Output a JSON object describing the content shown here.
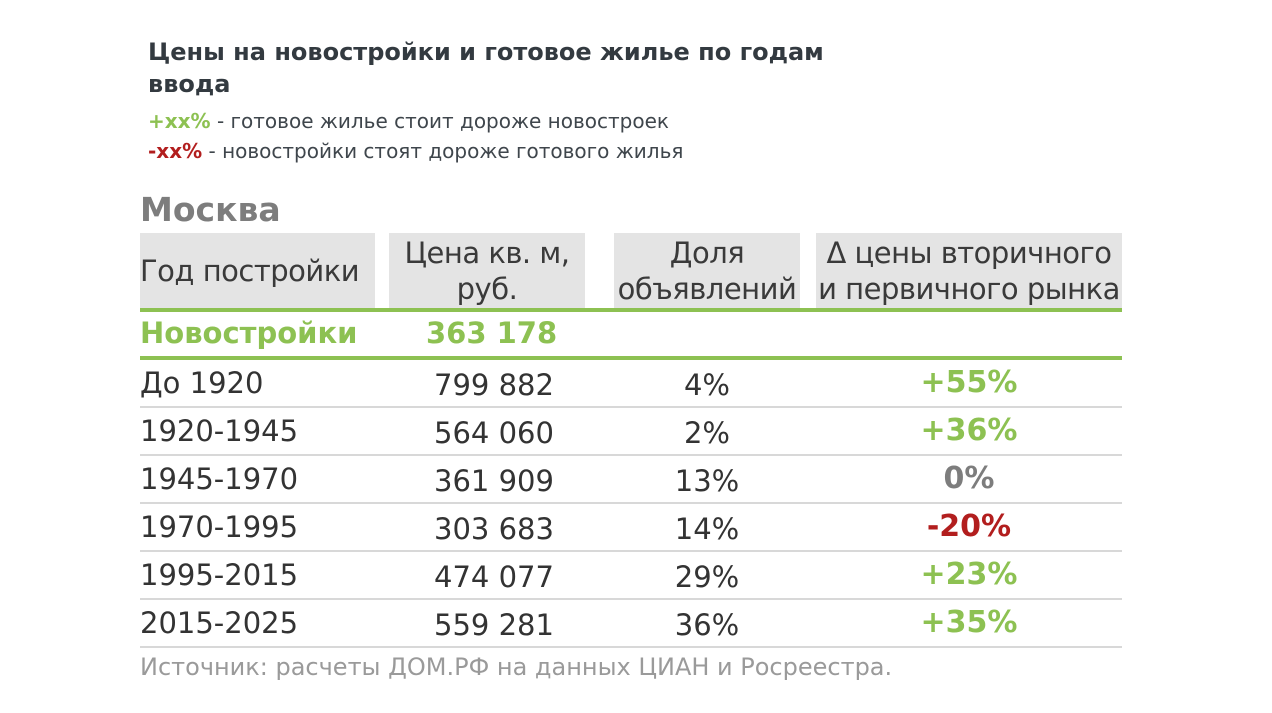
{
  "title": "Цены на новостройки и готовое жилье по годам ввода",
  "legend": {
    "pos_tag": "+xx%",
    "pos_text": " - готовое жилье стоит дороже новостроек",
    "neg_tag": "-xx%",
    "neg_text": " - новостройки стоят дороже готового жилья"
  },
  "city": "Москва",
  "source": "Источник: расчеты ДОМ.РФ на данных ЦИАН и Росреестра.",
  "chart_data": {
    "type": "table",
    "title": "Цены на новостройки и готовое жилье по годам ввода",
    "columns": [
      "Год постройки",
      "Цена кв. м, руб.",
      "Доля объявлений",
      "Δ цены вторичного и первичного рынка"
    ],
    "header_lines": {
      "c2": [
        "Цена кв. м,",
        "руб."
      ],
      "c3": [
        "Доля",
        "объявлений"
      ],
      "c4": [
        "Δ цены вторичного",
        "и первичного рынка"
      ]
    },
    "new_buildings": {
      "label": "Новостройки",
      "price": "363 178"
    },
    "rows": [
      {
        "period": "До 1920",
        "price": "799 882",
        "share": "4%",
        "delta": "+55%",
        "sign": "pos"
      },
      {
        "period": "1920-1945",
        "price": "564 060",
        "share": "2%",
        "delta": "+36%",
        "sign": "pos"
      },
      {
        "period": "1945-1970",
        "price": "361 909",
        "share": "13%",
        "delta": "0%",
        "sign": "neutral"
      },
      {
        "period": "1970-1995",
        "price": "303 683",
        "share": "14%",
        "delta": "-20%",
        "sign": "neg"
      },
      {
        "period": "1995-2015",
        "price": "474 077",
        "share": "29%",
        "delta": "+23%",
        "sign": "pos"
      },
      {
        "period": "2015-2025",
        "price": "559 281",
        "share": "36%",
        "delta": "+35%",
        "sign": "pos"
      }
    ],
    "colors": {
      "positive": "#8dc152",
      "neutral": "#7d7d7d",
      "negative": "#b21e1e"
    }
  }
}
